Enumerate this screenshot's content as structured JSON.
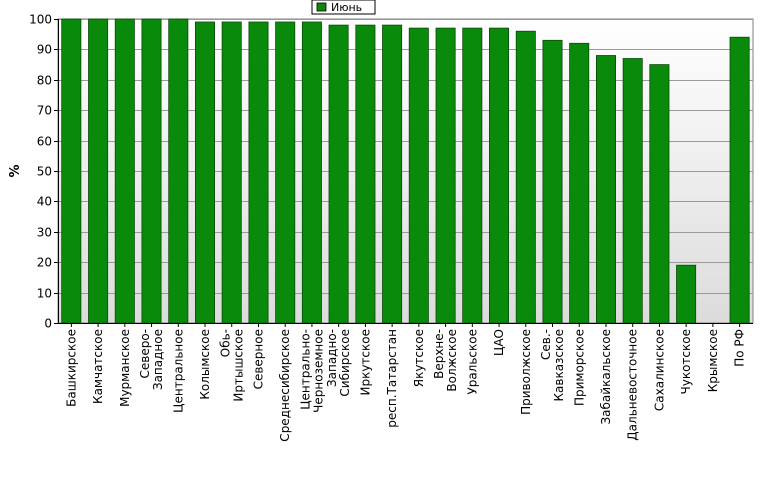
{
  "legend": {
    "label": "Июнь",
    "color": "#0a8a0a",
    "placement": "top-center"
  },
  "colors": {
    "bar": "#0a8a0a",
    "bar_stroke": "#0a4a0a",
    "grid": "#9a9a9a",
    "plot_bg_top": "#ffffff",
    "plot_bg_bottom": "#dcdcdc"
  },
  "chart_data": {
    "type": "bar",
    "title": "",
    "xlabel": "",
    "ylabel": "%",
    "ylim": [
      0,
      100
    ],
    "yticks": [
      0,
      10,
      20,
      30,
      40,
      50,
      60,
      70,
      80,
      90,
      100
    ],
    "grid": true,
    "legend": "top-center",
    "categories": [
      [
        "Башкирское"
      ],
      [
        "Камчатское"
      ],
      [
        "Мурманское"
      ],
      [
        "Северо-",
        "Западное"
      ],
      [
        "Центральное"
      ],
      [
        "Колымское"
      ],
      [
        "Обь-",
        "Иртышское"
      ],
      [
        "Северное"
      ],
      [
        "Среднесибирское"
      ],
      [
        "Центрально-",
        "Черноземное"
      ],
      [
        "Западно-",
        "Сибирское"
      ],
      [
        "Иркутское"
      ],
      [
        "респ.Татарстан"
      ],
      [
        "Якутское"
      ],
      [
        "Верхне-",
        "Волжское"
      ],
      [
        "Уральское"
      ],
      [
        "ЦАО"
      ],
      [
        "Приволжское"
      ],
      [
        "Сев.-",
        "Кавказское"
      ],
      [
        "Приморское"
      ],
      [
        "Забайкальское"
      ],
      [
        "Дальневосточное"
      ],
      [
        "Сахалинское"
      ],
      [
        "Чукотское"
      ],
      [
        "Крымское"
      ],
      [
        "По РФ"
      ]
    ],
    "series": [
      {
        "name": "Июнь",
        "values": [
          100,
          100,
          100,
          100,
          100,
          99,
          99,
          99,
          99,
          99,
          98,
          98,
          98,
          97,
          97,
          97,
          97,
          96,
          93,
          92,
          88,
          87,
          85,
          19,
          null,
          94
        ]
      }
    ]
  }
}
